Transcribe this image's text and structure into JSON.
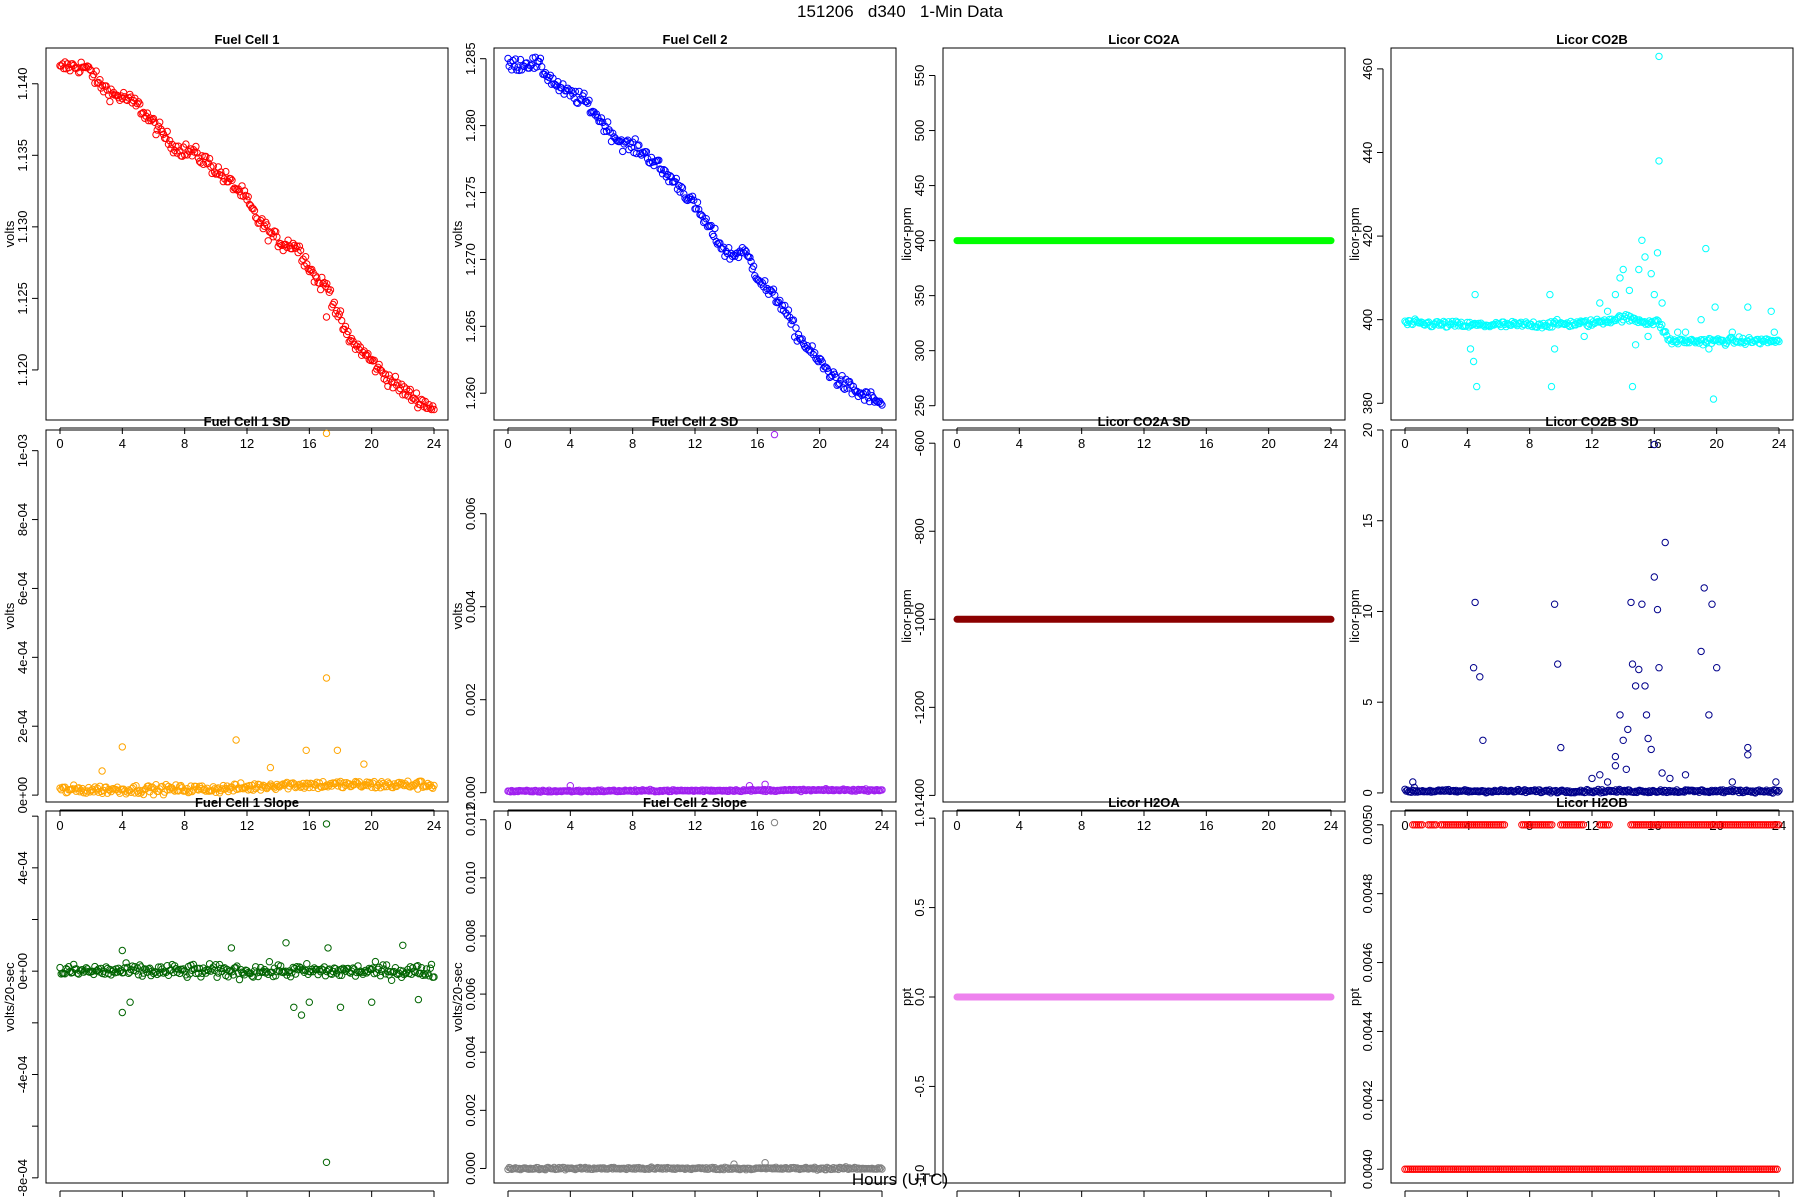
{
  "title": "151206   d340   1-Min Data",
  "xlabel": "Hours (UTC)",
  "chart_data": [
    {
      "type": "scatter",
      "title": "Fuel Cell 1",
      "ylabel": "volts",
      "color": "#ff0000",
      "xlim": [
        0,
        24
      ],
      "ylim": [
        1.1165,
        1.1425
      ],
      "xticks": [
        0,
        4,
        8,
        12,
        16,
        20,
        24
      ],
      "yticks": [
        1.12,
        1.125,
        1.13,
        1.135,
        1.14
      ],
      "ytick_labels": [
        "1.120",
        "1.125",
        "1.130",
        "1.135",
        "1.140"
      ],
      "trend": [
        [
          0,
          1.141
        ],
        [
          0.3,
          1.1412
        ],
        [
          1.5,
          1.1412
        ],
        [
          2,
          1.1408
        ],
        [
          2.5,
          1.14
        ],
        [
          3.5,
          1.1392
        ],
        [
          4.2,
          1.139
        ],
        [
          5,
          1.1385
        ],
        [
          6,
          1.1372
        ],
        [
          7,
          1.136
        ],
        [
          7.5,
          1.1355
        ],
        [
          8.5,
          1.1352
        ],
        [
          9.5,
          1.1345
        ],
        [
          10,
          1.134
        ],
        [
          11,
          1.133
        ],
        [
          11.8,
          1.1322
        ],
        [
          12.5,
          1.1308
        ],
        [
          13.5,
          1.1295
        ],
        [
          14.3,
          1.1288
        ],
        [
          15,
          1.1288
        ],
        [
          15.5,
          1.1282
        ],
        [
          16,
          1.1272
        ],
        [
          16.5,
          1.1262
        ],
        [
          17.2,
          1.1258
        ],
        [
          17.8,
          1.124
        ],
        [
          18.5,
          1.1222
        ],
        [
          19.5,
          1.1212
        ],
        [
          20.5,
          1.12
        ],
        [
          21.5,
          1.119
        ],
        [
          22.5,
          1.1182
        ],
        [
          23.5,
          1.1176
        ],
        [
          24,
          1.1173
        ]
      ],
      "jitter": 0.0005,
      "outliers": [
        [
          17.1,
          1.1237
        ]
      ]
    },
    {
      "type": "scatter",
      "title": "Fuel Cell 2",
      "ylabel": "volts",
      "color": "#0000ff",
      "xlim": [
        0,
        24
      ],
      "ylim": [
        1.258,
        1.2858
      ],
      "xticks": [
        0,
        4,
        8,
        12,
        16,
        20,
        24
      ],
      "yticks": [
        1.26,
        1.265,
        1.27,
        1.275,
        1.28,
        1.285
      ],
      "ytick_labels": [
        "1.260",
        "1.265",
        "1.270",
        "1.275",
        "1.280",
        "1.285"
      ],
      "trend": [
        [
          0,
          1.2845
        ],
        [
          1.5,
          1.2847
        ],
        [
          2,
          1.2845
        ],
        [
          2.5,
          1.2838
        ],
        [
          3.5,
          1.2826
        ],
        [
          4.3,
          1.2822
        ],
        [
          5,
          1.2818
        ],
        [
          6,
          1.2803
        ],
        [
          7,
          1.279
        ],
        [
          7.5,
          1.2786
        ],
        [
          8.5,
          1.2782
        ],
        [
          9.5,
          1.2772
        ],
        [
          10,
          1.2765
        ],
        [
          11,
          1.2755
        ],
        [
          12,
          1.274
        ],
        [
          13,
          1.2722
        ],
        [
          14,
          1.2705
        ],
        [
          14.5,
          1.2703
        ],
        [
          15,
          1.2707
        ],
        [
          15.5,
          1.27
        ],
        [
          16,
          1.2688
        ],
        [
          16.7,
          1.2676
        ],
        [
          17.5,
          1.2668
        ],
        [
          18.5,
          1.2645
        ],
        [
          19.5,
          1.263
        ],
        [
          20.5,
          1.2617
        ],
        [
          21.5,
          1.2607
        ],
        [
          22.5,
          1.26
        ],
        [
          23.5,
          1.2595
        ],
        [
          24,
          1.2592
        ]
      ],
      "jitter": 0.0005,
      "outliers": []
    },
    {
      "type": "scatter",
      "title": "Licor CO2A",
      "ylabel": "licor-ppm",
      "color": "#00ff00",
      "xlim": [
        0,
        24
      ],
      "ylim": [
        237,
        575
      ],
      "xticks": [
        0,
        4,
        8,
        12,
        16,
        20,
        24
      ],
      "yticks": [
        250,
        300,
        350,
        400,
        450,
        500,
        550
      ],
      "ytick_labels": [
        "250",
        "300",
        "350",
        "400",
        "450",
        "500",
        "550"
      ],
      "constant": 400,
      "outliers": []
    },
    {
      "type": "scatter",
      "title": "Licor CO2B",
      "ylabel": "licor-ppm",
      "color": "#00ffff",
      "xlim": [
        0,
        24
      ],
      "ylim": [
        376,
        465
      ],
      "xticks": [
        0,
        4,
        8,
        12,
        16,
        20,
        24
      ],
      "yticks": [
        380,
        400,
        420,
        440,
        460
      ],
      "ytick_labels": [
        "380",
        "400",
        "420",
        "440",
        "460"
      ],
      "trend": [
        [
          0,
          399.2
        ],
        [
          4,
          398.7
        ],
        [
          8,
          398.8
        ],
        [
          12,
          399.2
        ],
        [
          14,
          400.5
        ],
        [
          15.5,
          399.5
        ],
        [
          16.3,
          399.3
        ],
        [
          17,
          394.8
        ],
        [
          20,
          394.9
        ],
        [
          24,
          394.9
        ]
      ],
      "jitter": 0.8,
      "outliers": [
        [
          4.5,
          406
        ],
        [
          4.6,
          384
        ],
        [
          4.2,
          393
        ],
        [
          4.4,
          390
        ],
        [
          9.3,
          406
        ],
        [
          9.4,
          384
        ],
        [
          9.6,
          393
        ],
        [
          11.5,
          396
        ],
        [
          12.5,
          404
        ],
        [
          13,
          402
        ],
        [
          13.5,
          406
        ],
        [
          13.8,
          410
        ],
        [
          14,
          412
        ],
        [
          14.4,
          407
        ],
        [
          14.6,
          384
        ],
        [
          14.8,
          394
        ],
        [
          15,
          412
        ],
        [
          15.2,
          419
        ],
        [
          15.4,
          415
        ],
        [
          15.6,
          396
        ],
        [
          15.8,
          411
        ],
        [
          16,
          406
        ],
        [
          16.2,
          416
        ],
        [
          16.3,
          438
        ],
        [
          16.3,
          463
        ],
        [
          16.5,
          404
        ],
        [
          17.5,
          397
        ],
        [
          18,
          397
        ],
        [
          19,
          400
        ],
        [
          19.3,
          417
        ],
        [
          19.5,
          393
        ],
        [
          19.8,
          381
        ],
        [
          19.9,
          403
        ],
        [
          21,
          397
        ],
        [
          22,
          403
        ],
        [
          23.5,
          402
        ],
        [
          23.7,
          397
        ]
      ]
    },
    {
      "type": "scatter",
      "title": "Fuel Cell 1 SD",
      "ylabel": "volts",
      "color": "#ffa500",
      "xlim": [
        0,
        24
      ],
      "ylim": [
        -2e-05,
        0.00106
      ],
      "xticks": [
        0,
        4,
        8,
        12,
        16,
        20,
        24
      ],
      "yticks": [
        0,
        0.0002,
        0.0004,
        0.0006,
        0.0008,
        0.001
      ],
      "ytick_labels": [
        "0e+00",
        "2e-04",
        "4e-04",
        "6e-04",
        "8e-04",
        "1e-03"
      ],
      "trend": [
        [
          0,
          1.5e-05
        ],
        [
          10,
          1.8e-05
        ],
        [
          12,
          2.2e-05
        ],
        [
          14,
          3e-05
        ],
        [
          24,
          3e-05
        ]
      ],
      "jitter": 1.2e-05,
      "outliers": [
        [
          17.1,
          0.00105
        ],
        [
          17.1,
          0.00034
        ],
        [
          4,
          0.00014
        ],
        [
          11.3,
          0.00016
        ],
        [
          15.8,
          0.00013
        ],
        [
          17.8,
          0.00013
        ],
        [
          2.7,
          7e-05
        ],
        [
          19.5,
          9e-05
        ],
        [
          13.5,
          8e-05
        ]
      ]
    },
    {
      "type": "scatter",
      "title": "Fuel Cell 2 SD",
      "ylabel": "volts",
      "color": "#a020f0",
      "xlim": [
        0,
        24
      ],
      "ylim": [
        -0.0002,
        0.0078
      ],
      "xticks": [
        0,
        4,
        8,
        12,
        16,
        20,
        24
      ],
      "yticks": [
        0,
        0.002,
        0.004,
        0.006
      ],
      "ytick_labels": [
        "0.000",
        "0.002",
        "0.004",
        "0.006"
      ],
      "trend": [
        [
          0,
          3e-05
        ],
        [
          24,
          6e-05
        ]
      ],
      "jitter": 2e-05,
      "outliers": [
        [
          17.1,
          0.0077
        ],
        [
          4,
          0.00015
        ],
        [
          15.5,
          0.00015
        ],
        [
          16.5,
          0.00018
        ]
      ]
    },
    {
      "type": "scatter",
      "title": "Licor CO2A SD",
      "ylabel": "licor-ppm",
      "color": "#8b0000",
      "xlim": [
        0,
        24
      ],
      "ylim": [
        -1415,
        -570
      ],
      "xticks": [
        0,
        4,
        8,
        12,
        16,
        20,
        24
      ],
      "yticks": [
        -1400,
        -1200,
        -1000,
        -800,
        -600
      ],
      "ytick_labels": [
        "-1400",
        "-1200",
        "-1000",
        "-800",
        "-600"
      ],
      "constant": -1000,
      "outliers": []
    },
    {
      "type": "scatter",
      "title": "Licor CO2B SD",
      "ylabel": "licor-ppm",
      "color": "#00008b",
      "xlim": [
        0,
        24
      ],
      "ylim": [
        -0.5,
        20
      ],
      "xticks": [
        0,
        4,
        8,
        12,
        16,
        20,
        24
      ],
      "yticks": [
        0,
        5,
        10,
        15,
        20
      ],
      "ytick_labels": [
        "0",
        "5",
        "10",
        "15",
        "20"
      ],
      "trend": [
        [
          0,
          0.1
        ],
        [
          24,
          0.1
        ]
      ],
      "jitter": 0.08,
      "outliers": [
        [
          0.5,
          0.6
        ],
        [
          0.6,
          0.3
        ],
        [
          4.4,
          6.9
        ],
        [
          4.5,
          10.5
        ],
        [
          4.8,
          6.4
        ],
        [
          5,
          2.9
        ],
        [
          9.6,
          10.4
        ],
        [
          9.8,
          7.1
        ],
        [
          10,
          2.5
        ],
        [
          12.5,
          1.0
        ],
        [
          13,
          0.6
        ],
        [
          13.5,
          2.0
        ],
        [
          13.8,
          4.3
        ],
        [
          14,
          2.9
        ],
        [
          14.3,
          3.5
        ],
        [
          14.5,
          10.5
        ],
        [
          14.6,
          7.1
        ],
        [
          14.8,
          5.9
        ],
        [
          15,
          6.8
        ],
        [
          15.2,
          10.4
        ],
        [
          15.4,
          5.9
        ],
        [
          15.5,
          4.3
        ],
        [
          15.6,
          3.0
        ],
        [
          15.8,
          2.4
        ],
        [
          16,
          11.9
        ],
        [
          16,
          19.2
        ],
        [
          16.2,
          10.1
        ],
        [
          16.3,
          6.9
        ],
        [
          16.5,
          1.1
        ],
        [
          16.7,
          13.8
        ],
        [
          17,
          0.8
        ],
        [
          18,
          1.0
        ],
        [
          19,
          7.8
        ],
        [
          19.2,
          11.3
        ],
        [
          19.5,
          4.3
        ],
        [
          19.7,
          10.4
        ],
        [
          20,
          6.9
        ],
        [
          22,
          2.1
        ],
        [
          22,
          2.5
        ],
        [
          23.8,
          0.6
        ],
        [
          21,
          0.6
        ],
        [
          12,
          0.8
        ],
        [
          14.2,
          1.3
        ],
        [
          13.5,
          1.5
        ]
      ]
    },
    {
      "type": "scatter",
      "title": "Fuel Cell 1 Slope",
      "ylabel": "volts/20-sec",
      "color": "#006400",
      "xlim": [
        0,
        24
      ],
      "ylim": [
        -0.00082,
        0.00062
      ],
      "xticks": [
        0,
        4,
        8,
        12,
        16,
        20,
        24
      ],
      "yticks": [
        -0.0008,
        -0.0006,
        -0.0004,
        -0.0002,
        0,
        0.0002,
        0.0004,
        0.0006
      ],
      "ytick_labels": [
        "-8e-04",
        "",
        "-4e-04",
        "",
        "0e+00",
        "",
        "4e-04",
        ""
      ],
      "trend": [
        [
          0,
          0
        ],
        [
          24,
          0
        ]
      ],
      "jitter": 2.5e-05,
      "outliers": [
        [
          17.1,
          0.00057
        ],
        [
          17.1,
          -0.00074
        ],
        [
          4,
          -0.00016
        ],
        [
          4.5,
          -0.00012
        ],
        [
          14.5,
          0.00011
        ],
        [
          15,
          -0.00014
        ],
        [
          15.5,
          -0.00017
        ],
        [
          16,
          -0.00012
        ],
        [
          18,
          -0.00014
        ],
        [
          20,
          -0.00012
        ],
        [
          22,
          0.0001
        ],
        [
          23,
          -0.00011
        ],
        [
          4,
          8e-05
        ],
        [
          11,
          9e-05
        ],
        [
          17.2,
          9e-05
        ]
      ]
    },
    {
      "type": "scatter",
      "title": "Fuel Cell 2 Slope",
      "ylabel": "volts/20-sec",
      "color": "#808080",
      "xlim": [
        0,
        24
      ],
      "ylim": [
        -0.0005,
        0.0123
      ],
      "xticks": [
        0,
        4,
        8,
        12,
        16,
        20,
        24
      ],
      "yticks": [
        0,
        0.002,
        0.004,
        0.006,
        0.008,
        0.01,
        0.012
      ],
      "ytick_labels": [
        "0.000",
        "0.002",
        "0.004",
        "0.006",
        "0.008",
        "0.010",
        "0.012"
      ],
      "trend": [
        [
          0,
          0
        ],
        [
          24,
          0
        ]
      ],
      "jitter": 4e-05,
      "outliers": [
        [
          17.1,
          0.0119
        ],
        [
          16.5,
          0.0002
        ],
        [
          14.5,
          0.00015
        ]
      ]
    },
    {
      "type": "scatter",
      "title": "Licor H2OA",
      "ylabel": "ppt",
      "color": "#ee82ee",
      "xlim": [
        0,
        24
      ],
      "ylim": [
        -1.04,
        1.04
      ],
      "xticks": [
        0,
        4,
        8,
        12,
        16,
        20,
        24
      ],
      "yticks": [
        -1,
        -0.5,
        0,
        0.5,
        1
      ],
      "ytick_labels": [
        "-1.0",
        "-0.5",
        "0.0",
        "0.5",
        "1.0"
      ],
      "constant": 0,
      "outliers": []
    },
    {
      "type": "scatter",
      "title": "Licor H2OB",
      "ylabel": "ppt",
      "color": "#ff0000",
      "xlim": [
        0,
        24
      ],
      "ylim": [
        0.00396,
        0.00504
      ],
      "xticks": [
        0,
        4,
        8,
        12,
        16,
        20,
        24
      ],
      "yticks": [
        0.004,
        0.0042,
        0.0044,
        0.0046,
        0.0048,
        0.005
      ],
      "ytick_labels": [
        "0.0040",
        "0.0042",
        "0.0044",
        "0.0046",
        "0.0048",
        "0.0050"
      ],
      "two_level": {
        "low": 0.004,
        "high": 0.005,
        "high_segments": [
          [
            0.5,
            1.2
          ],
          [
            1.5,
            2.0
          ],
          [
            2.3,
            6.5
          ],
          [
            7.5,
            9.5
          ],
          [
            10,
            11.5
          ],
          [
            12.5,
            13.2
          ],
          [
            14.5,
            24
          ]
        ]
      },
      "outliers": []
    }
  ]
}
